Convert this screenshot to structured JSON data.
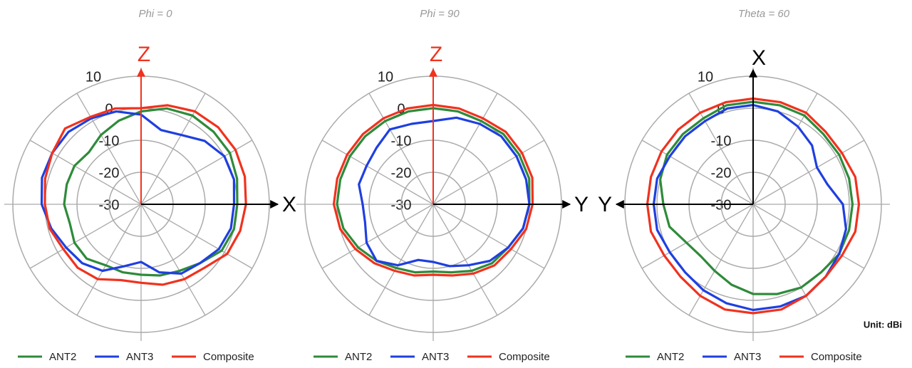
{
  "chart_data": [
    {
      "type": "polar",
      "title": "Phi = 0",
      "axis_up": "Z",
      "axis_up_color": "#f0321e",
      "axis_side": "X",
      "axis_side_dir": "right",
      "rlim": [
        -30,
        10
      ],
      "rticks": [
        -30,
        -20,
        -10,
        0,
        10
      ],
      "theta": [
        0,
        15,
        30,
        45,
        60,
        75,
        90,
        105,
        120,
        135,
        150,
        165,
        180,
        195,
        210,
        225,
        240,
        255,
        270,
        285,
        300,
        315,
        330,
        345
      ],
      "series": [
        {
          "name": "ANT2",
          "color": "#2e8b3a",
          "values": [
            -1,
            1,
            2,
            2,
            2,
            1,
            0,
            0,
            -1,
            -4,
            -6,
            -7,
            -8,
            -8,
            -8,
            -6,
            -6,
            -7,
            -6,
            -6,
            -6,
            -7,
            -5,
            -3
          ]
        },
        {
          "name": "ANT3",
          "color": "#1f3fe0",
          "values": [
            -2,
            -6,
            -5,
            -2,
            0,
            0,
            -1,
            -1,
            -2,
            -4,
            -5,
            -8,
            -12,
            -10,
            -6,
            -4,
            -3,
            -1,
            1,
            2,
            2,
            2,
            1,
            0
          ]
        },
        {
          "name": "Composite",
          "color": "#f0321e",
          "values": [
            0,
            2,
            3.5,
            4,
            4,
            3.5,
            2.7,
            2,
            1,
            -2,
            -3,
            -4,
            -5.5,
            -5.5,
            -3,
            -2,
            -2,
            -0.5,
            0,
            1,
            2,
            3.5,
            1.5,
            1
          ]
        }
      ]
    },
    {
      "type": "polar",
      "title": "Phi = 90",
      "axis_up": "Z",
      "axis_up_color": "#f0321e",
      "axis_side": "Y",
      "axis_side_dir": "right",
      "rlim": [
        -30,
        10
      ],
      "rticks": [
        -30,
        -20,
        -10,
        0,
        10
      ],
      "theta": [
        0,
        15,
        30,
        45,
        60,
        75,
        90,
        105,
        120,
        135,
        150,
        165,
        180,
        195,
        210,
        225,
        240,
        255,
        270,
        285,
        300,
        315,
        330,
        345
      ],
      "series": [
        {
          "name": "ANT2",
          "color": "#2e8b3a",
          "values": [
            0,
            0,
            0,
            1,
            1,
            1,
            0,
            -1,
            -3,
            -4,
            -6,
            -8,
            -9,
            -8,
            -7,
            -5,
            -3,
            -1,
            0,
            0,
            0,
            0,
            0,
            0
          ]
        },
        {
          "name": "ANT3",
          "color": "#1f3fe0",
          "values": [
            -4,
            -2,
            -1,
            0,
            0,
            0,
            0,
            -1,
            -3,
            -5,
            -8,
            -10,
            -12,
            -12,
            -8,
            -5,
            -6,
            -8,
            -8,
            -6,
            -6,
            -5,
            -3,
            -4
          ]
        },
        {
          "name": "Composite",
          "color": "#f0321e",
          "values": [
            1,
            1,
            1,
            2,
            2,
            2,
            1,
            0,
            -2,
            -3,
            -5,
            -7,
            -8,
            -7,
            -6,
            -4,
            -2,
            0,
            1,
            1,
            1,
            1,
            1,
            1
          ]
        }
      ]
    },
    {
      "type": "polar",
      "title": "Theta = 60",
      "axis_up": "X",
      "axis_up_color": "#000000",
      "axis_side": "Y",
      "axis_side_dir": "left",
      "rlim": [
        -30,
        10
      ],
      "rticks": [
        -30,
        -20,
        -10,
        0,
        10
      ],
      "annotation": "Unit: dBi",
      "theta": [
        0,
        15,
        30,
        45,
        60,
        75,
        90,
        105,
        120,
        135,
        150,
        165,
        180,
        195,
        210,
        225,
        240,
        255,
        270,
        285,
        300,
        315,
        330,
        345
      ],
      "series": [
        {
          "name": "ANT2",
          "color": "#2e8b3a",
          "values": [
            2,
            2,
            2,
            1,
            1,
            1,
            1,
            1,
            1,
            0,
            0,
            -1,
            -2,
            -4,
            -6,
            -7,
            -6,
            -3,
            -2,
            0,
            1,
            1,
            1,
            2
          ]
        },
        {
          "name": "ANT3",
          "color": "#1f3fe0",
          "values": [
            1,
            0,
            -2,
            -4,
            -7,
            -6,
            -2,
            0,
            1,
            2,
            3,
            3,
            3,
            2,
            1,
            0,
            0,
            1,
            1,
            1,
            0,
            0,
            0,
            1
          ]
        },
        {
          "name": "Composite",
          "color": "#f0321e",
          "values": [
            3,
            3,
            3,
            2,
            2,
            3,
            3,
            3,
            2,
            2,
            3,
            4,
            4,
            4,
            3,
            2,
            2,
            3,
            3,
            3,
            3,
            3,
            3,
            3
          ]
        }
      ]
    }
  ]
}
